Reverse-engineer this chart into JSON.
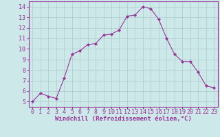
{
  "x": [
    0,
    1,
    2,
    3,
    4,
    5,
    6,
    7,
    8,
    9,
    10,
    11,
    12,
    13,
    14,
    15,
    16,
    17,
    18,
    19,
    20,
    21,
    22,
    23
  ],
  "y": [
    5.0,
    5.8,
    5.5,
    5.3,
    7.2,
    9.5,
    9.8,
    10.4,
    10.5,
    11.3,
    11.4,
    11.8,
    13.1,
    13.2,
    14.0,
    13.8,
    12.8,
    11.0,
    9.5,
    8.8,
    8.8,
    7.8,
    6.5,
    6.3
  ],
  "line_color": "#993399",
  "marker": "D",
  "marker_size": 2,
  "bg_color": "#cce8e8",
  "grid_color": "#aacccc",
  "xlabel": "Windchill (Refroidissement éolien,°C)",
  "xlabel_color": "#993399",
  "tick_color": "#993399",
  "spine_color": "#993399",
  "xlim": [
    -0.5,
    23.5
  ],
  "ylim": [
    4.5,
    14.5
  ],
  "yticks": [
    5,
    6,
    7,
    8,
    9,
    10,
    11,
    12,
    13,
    14
  ],
  "xticks": [
    0,
    1,
    2,
    3,
    4,
    5,
    6,
    7,
    8,
    9,
    10,
    11,
    12,
    13,
    14,
    15,
    16,
    17,
    18,
    19,
    20,
    21,
    22,
    23
  ],
  "tick_fontsize": 6,
  "xlabel_fontsize": 6.5
}
